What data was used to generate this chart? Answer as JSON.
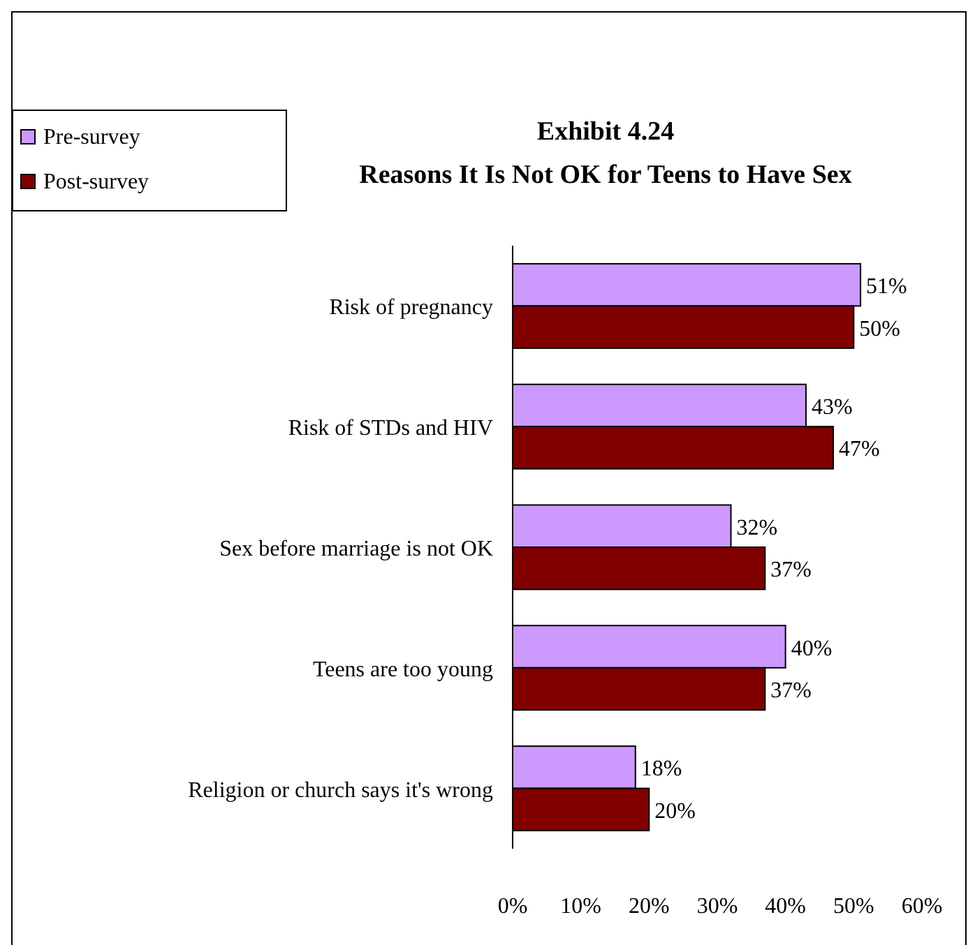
{
  "chart_data": {
    "type": "bar",
    "orientation": "horizontal",
    "title": "Exhibit 4.24",
    "subtitle": "Reasons It Is Not OK for Teens to Have Sex",
    "categories": [
      "Risk of pregnancy",
      "Risk of STDs and HIV",
      "Sex before marriage is not OK",
      "Teens are too young",
      "Religion or church says it's wrong"
    ],
    "series": [
      {
        "name": "Pre-survey",
        "color": "#cc99ff",
        "values": [
          51,
          43,
          32,
          40,
          18
        ],
        "value_labels": [
          "51%",
          "43%",
          "32%",
          "40%",
          "18%"
        ]
      },
      {
        "name": "Post-survey",
        "color": "#800000",
        "values": [
          50,
          47,
          37,
          37,
          20
        ],
        "value_labels": [
          "50%",
          "47%",
          "37%",
          "37%",
          "20%"
        ]
      }
    ],
    "xlim": [
      0,
      60
    ],
    "xticks": [
      {
        "value": 0,
        "label": "0%"
      },
      {
        "value": 10,
        "label": "10%"
      },
      {
        "value": 20,
        "label": "20%"
      },
      {
        "value": 30,
        "label": "30%"
      },
      {
        "value": 40,
        "label": "40%"
      },
      {
        "value": 50,
        "label": "50%"
      },
      {
        "value": 60,
        "label": "60%"
      }
    ],
    "grid": false,
    "legend": "top left"
  }
}
